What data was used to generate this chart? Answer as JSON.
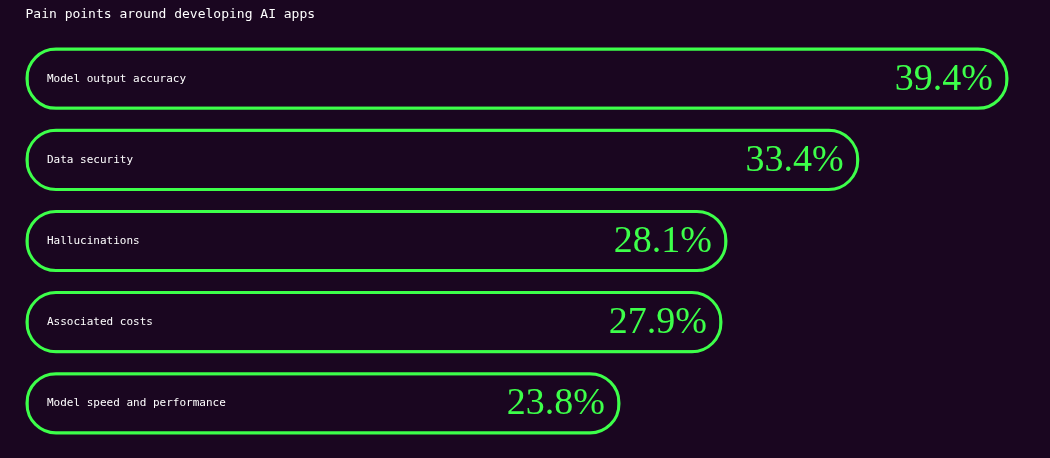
{
  "chart_data": {
    "type": "bar",
    "orientation": "horizontal",
    "title": "Pain points around developing AI apps",
    "categories": [
      "Model output accuracy",
      "Data security",
      "Hallucinations",
      "Associated costs",
      "Model speed and performance"
    ],
    "values": [
      39.4,
      33.4,
      28.1,
      27.9,
      23.8
    ],
    "value_labels": [
      "39.4%",
      "33.4%",
      "28.1%",
      "27.9%",
      "23.8%"
    ],
    "color": "#3dff4a"
  }
}
